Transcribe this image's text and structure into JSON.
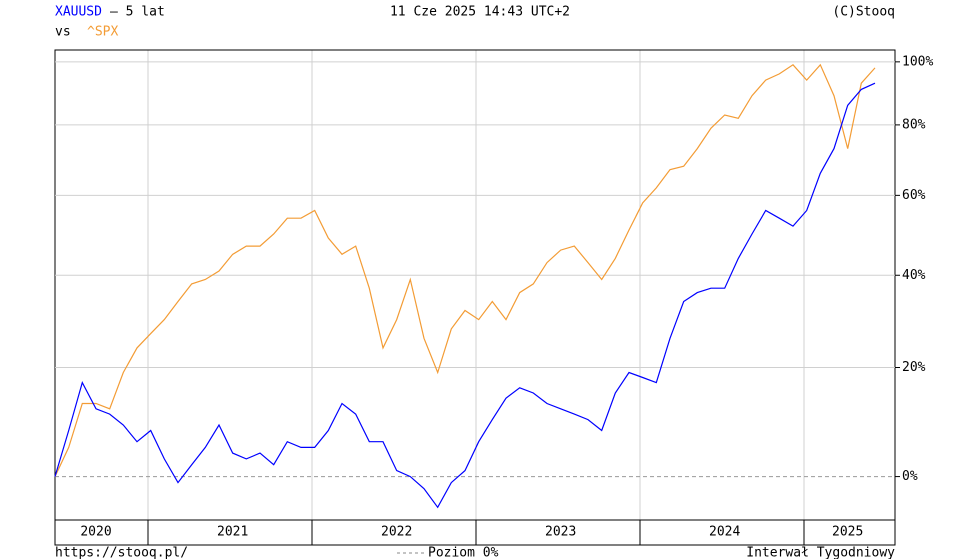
{
  "chart_data": {
    "type": "line",
    "period": "– 5 lat",
    "compare_label": "vs",
    "timestamp": "11 Cze 2025 14:43 UTC+2",
    "source": "(C)Stooq",
    "url": "https://stooq.pl/",
    "zero_level_label": "Poziom 0%",
    "interval": "Interwał Tygodniowy",
    "log_scale": true,
    "grid": true,
    "categories": [
      null,
      null,
      null,
      "2020",
      null,
      null,
      null,
      null,
      null,
      null,
      null,
      null,
      null,
      "2021",
      null,
      null,
      null,
      null,
      null,
      null,
      null,
      null,
      null,
      null,
      null,
      "2022",
      null,
      null,
      null,
      null,
      null,
      null,
      null,
      null,
      null,
      null,
      null,
      "2023",
      null,
      null,
      null,
      null,
      null,
      null,
      null,
      null,
      null,
      null,
      null,
      "2024",
      null,
      null,
      null,
      null,
      null,
      null,
      null,
      null,
      "2025",
      null,
      null
    ],
    "series": [
      {
        "name": "XAUUSD",
        "color": "#0000ff",
        "values": [
          0,
          8,
          17,
          12,
          11,
          9,
          6,
          8,
          3,
          -1,
          2,
          5,
          9,
          4,
          3,
          4,
          2,
          6,
          5,
          5,
          8,
          13,
          11,
          6,
          6,
          1,
          0,
          -2,
          -5,
          -1,
          1,
          6,
          10,
          14,
          16,
          15,
          13,
          12,
          11,
          10,
          8,
          15,
          19,
          18,
          17,
          26,
          34,
          36,
          37,
          37,
          44,
          50,
          56,
          54,
          52,
          56,
          66,
          73,
          86,
          91,
          93
        ]
      },
      {
        "name": "^SPX",
        "color": "#f39c35",
        "values": [
          0,
          5,
          13,
          13,
          12,
          19,
          24,
          27,
          30,
          34,
          38,
          39,
          41,
          45,
          47,
          47,
          50,
          54,
          54,
          56,
          49,
          45,
          47,
          37,
          24,
          30,
          39,
          26,
          19,
          28,
          32,
          30,
          34,
          30,
          36,
          38,
          43,
          46,
          47,
          43,
          39,
          44,
          51,
          58,
          62,
          67,
          68,
          73,
          79,
          83,
          82,
          89,
          94,
          96,
          99,
          94,
          99,
          89,
          73,
          93,
          98
        ]
      }
    ],
    "ylim": [
      -7,
      104
    ],
    "yticks": [
      {
        "value": 0,
        "label": "0%"
      },
      {
        "value": 20,
        "label": "20%"
      },
      {
        "value": 40,
        "label": "40%"
      },
      {
        "value": 60,
        "label": "60%"
      },
      {
        "value": 80,
        "label": "80%"
      },
      {
        "value": 100,
        "label": "100%"
      }
    ]
  }
}
